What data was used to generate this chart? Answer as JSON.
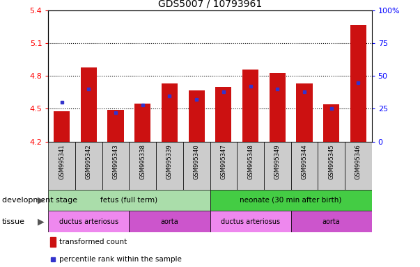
{
  "title": "GDS5007 / 10793961",
  "samples": [
    "GSM995341",
    "GSM995342",
    "GSM995343",
    "GSM995338",
    "GSM995339",
    "GSM995340",
    "GSM995347",
    "GSM995348",
    "GSM995349",
    "GSM995344",
    "GSM995345",
    "GSM995346"
  ],
  "red_values": [
    4.48,
    4.88,
    4.49,
    4.55,
    4.73,
    4.67,
    4.7,
    4.86,
    4.83,
    4.73,
    4.54,
    5.27
  ],
  "blue_pct": [
    30,
    40,
    22,
    28,
    35,
    32,
    38,
    42,
    40,
    38,
    25,
    45
  ],
  "y_min": 4.2,
  "y_max": 5.4,
  "bar_color": "#cc1111",
  "blue_color": "#3333cc",
  "tick_bg": "#cccccc",
  "fetus_bg": "#aaddaa",
  "neonate_bg": "#44cc44",
  "duct_bg": "#ee88ee",
  "aorta_bg": "#cc55cc",
  "title_fontsize": 10,
  "fetus_label": "fetus (full term)",
  "neonate_label": "neonate (30 min after birth)",
  "duct_label": "ductus arteriosus",
  "aorta_label": "aorta",
  "dev_label": "development stage",
  "tissue_label": "tissue",
  "legend_red": "transformed count",
  "legend_blue": "percentile rank within the sample"
}
